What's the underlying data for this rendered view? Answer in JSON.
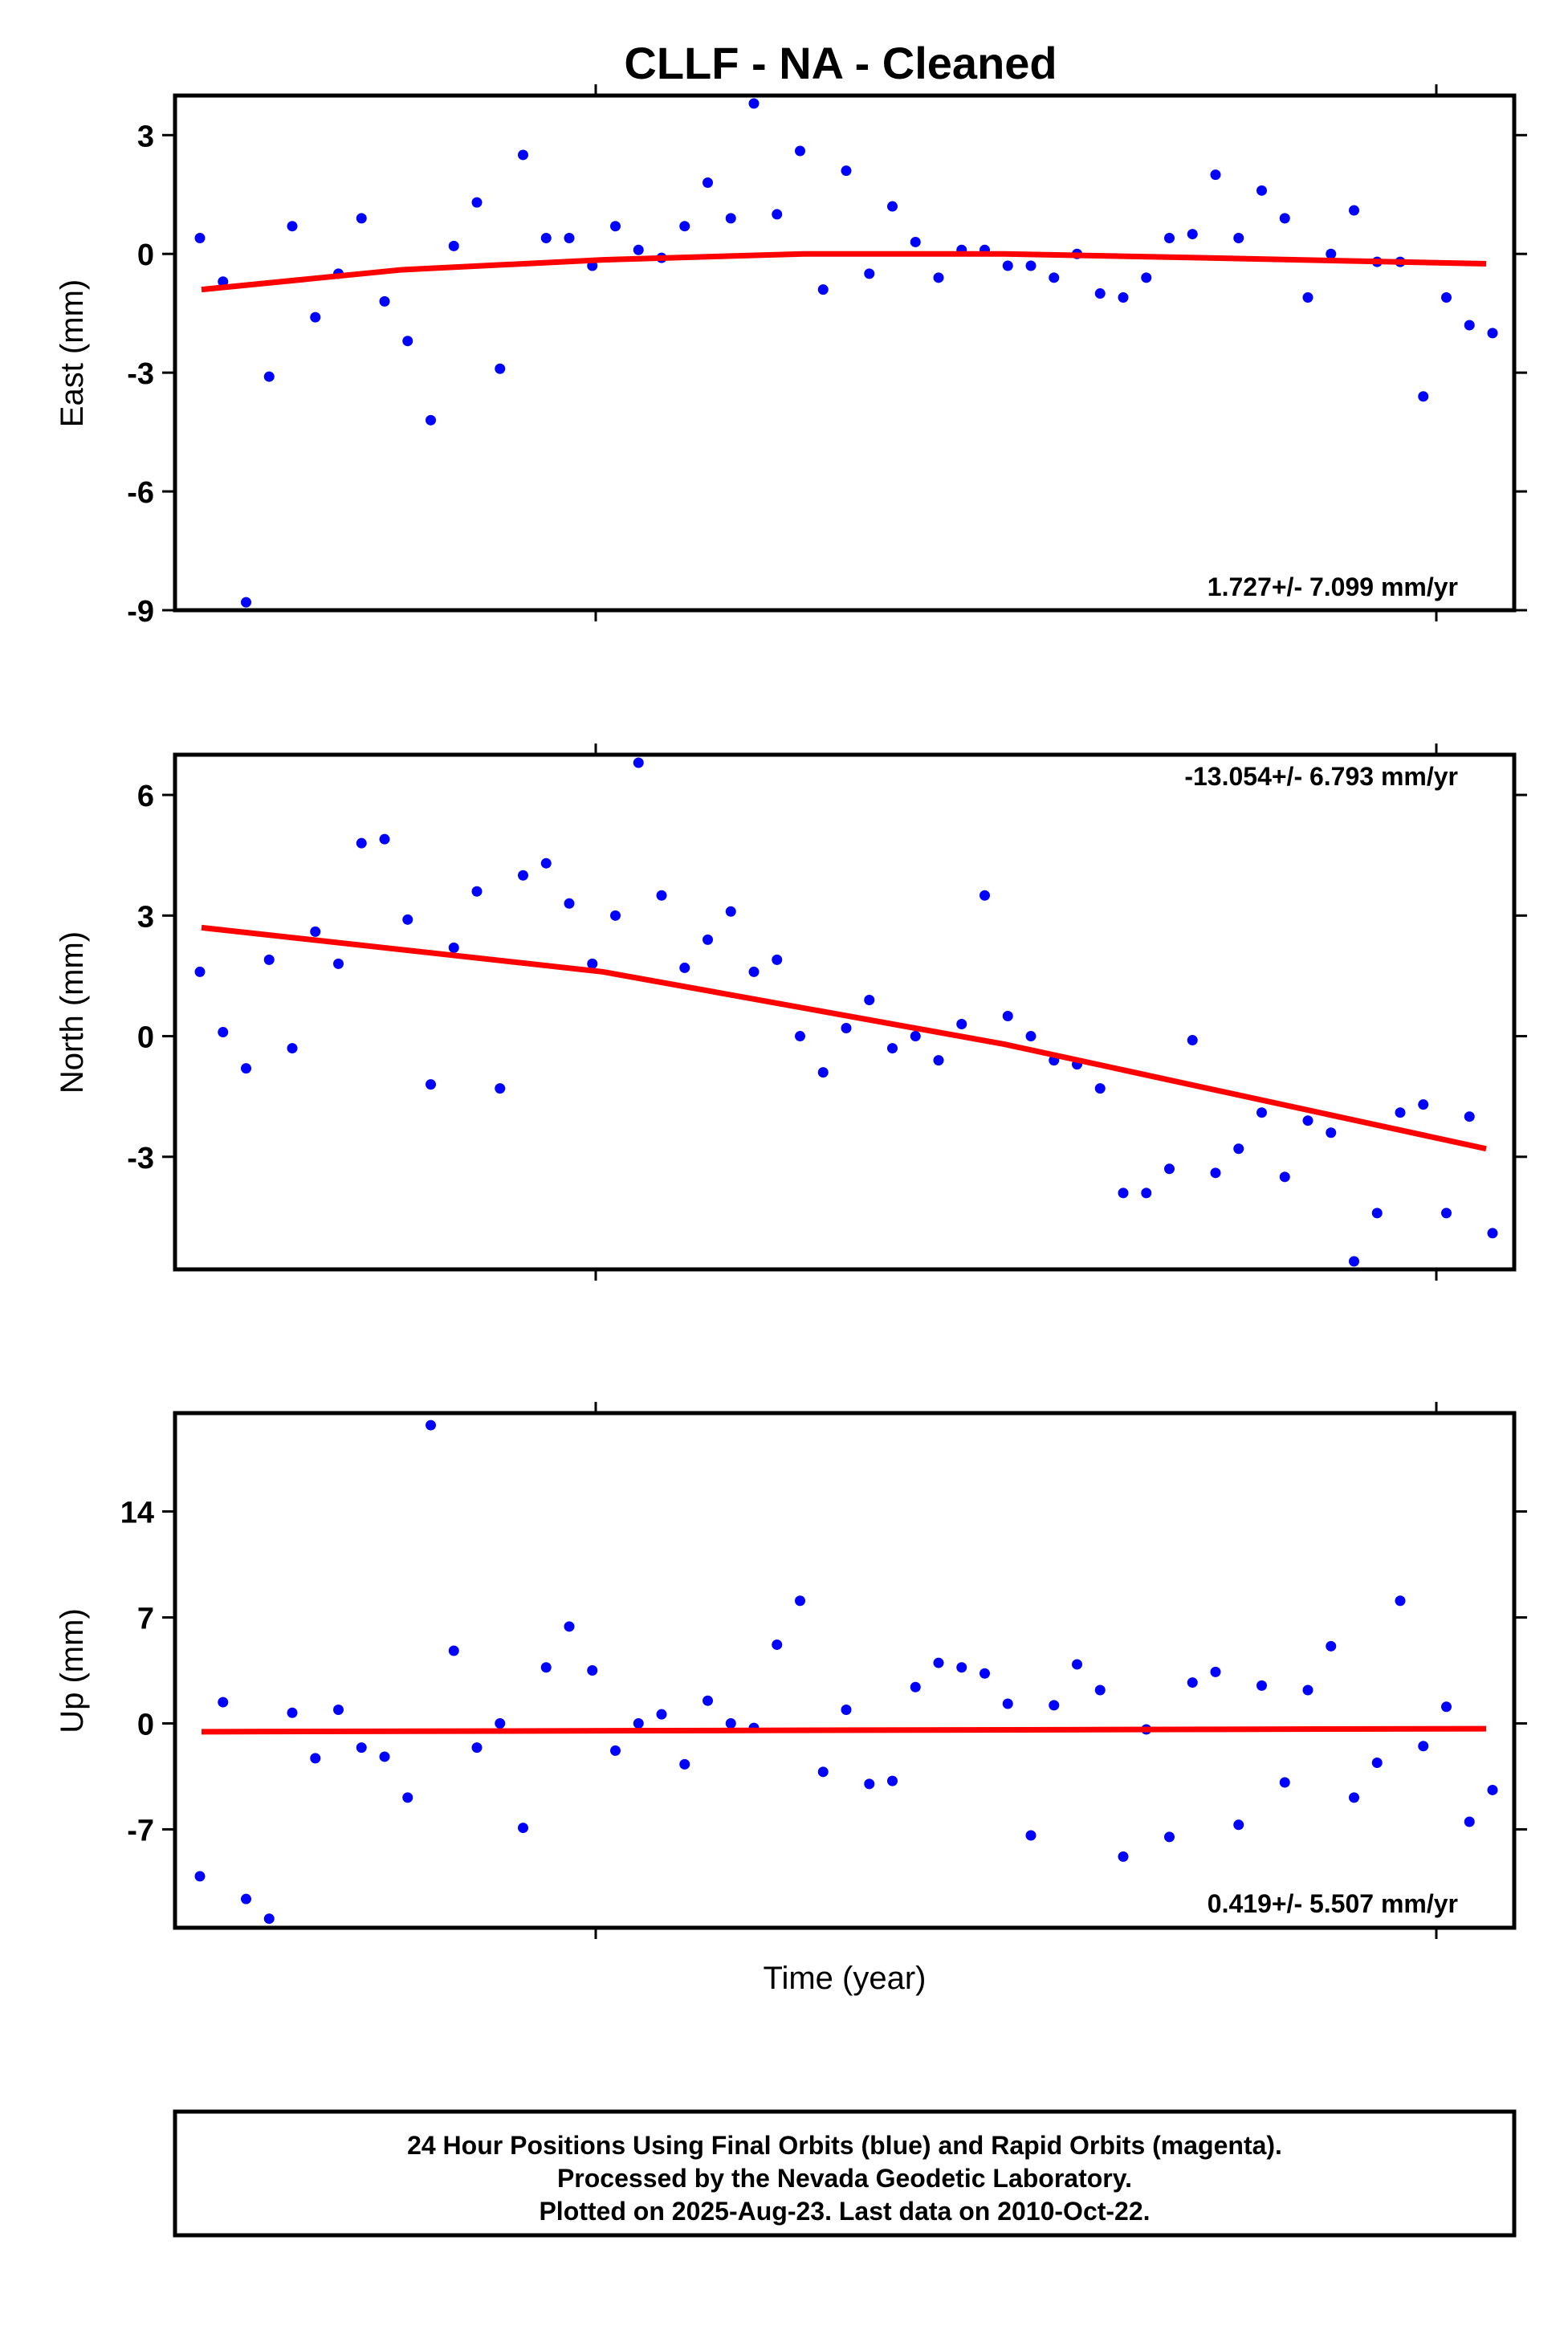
{
  "title": "CLLF  - NA - Cleaned",
  "xlabel": "Time (year)",
  "footer": {
    "line1": "24 Hour Positions Using Final Orbits (blue) and Rapid Orbits (magenta).",
    "line2": "Processed by the Nevada Geodetic Laboratory.",
    "line3": "Plotted on 2025-Aug-23. Last data on 2010-Oct-22."
  },
  "colors": {
    "points": "#0000ff",
    "trend": "#ff0000",
    "frame": "#000000"
  },
  "chart_data": [
    {
      "type": "scatter",
      "ylabel": "East (mm)",
      "ylim": [
        -9,
        4
      ],
      "yticks": [
        3,
        0,
        -3,
        -6,
        -9
      ],
      "rate": "1.727+/- 7.099 mm/yr",
      "rate_position": "bottom-right",
      "series": [
        {
          "values": [
            0.4,
            -0.7,
            -8.8,
            -3.1,
            0.7,
            -1.6,
            -0.5,
            0.9,
            -1.2,
            -2.2,
            -4.2,
            0.2,
            1.3,
            -2.9,
            2.5,
            0.4,
            0.4,
            -0.3,
            0.7,
            0.1,
            -0.1,
            0.7,
            1.8,
            0.9,
            3.8,
            1.0,
            2.6,
            -0.9,
            2.1,
            -0.5,
            1.2,
            0.3,
            -0.6,
            0.1,
            0.1,
            -0.3,
            -0.3,
            -0.6,
            0.0,
            -1.0,
            -1.1,
            -0.6,
            0.4,
            0.5,
            2.0,
            0.4,
            1.6,
            0.9,
            -1.1,
            0.0,
            1.1,
            -0.2,
            -0.2,
            -3.6,
            -1.1,
            -1.8,
            -2.0
          ]
        }
      ],
      "trend": [
        [
          0,
          -0.9
        ],
        [
          0.5,
          -0.4
        ],
        [
          1.0,
          -0.15
        ],
        [
          1.5,
          0.0
        ],
        [
          2.0,
          0.0
        ],
        [
          2.5,
          -0.1
        ],
        [
          3.2,
          -0.25
        ]
      ]
    },
    {
      "type": "scatter",
      "ylabel": "North (mm)",
      "ylim": [
        -5.8,
        7
      ],
      "yticks": [
        6,
        3,
        0,
        -3
      ],
      "rate": "-13.054+/- 6.793 mm/yr",
      "rate_position": "top-right",
      "series": [
        {
          "values": [
            1.6,
            0.1,
            -0.8,
            1.9,
            -0.3,
            2.6,
            1.8,
            4.8,
            4.9,
            2.9,
            -1.2,
            2.2,
            3.6,
            -1.3,
            4.0,
            4.3,
            3.3,
            1.8,
            3.0,
            6.8,
            3.5,
            1.7,
            2.4,
            3.1,
            1.6,
            1.9,
            0.0,
            -0.9,
            0.2,
            0.9,
            -0.3,
            0.0,
            -0.6,
            0.3,
            3.5,
            0.5,
            0.0,
            -0.6,
            -0.7,
            -1.3,
            -3.9,
            -3.9,
            -3.3,
            -0.1,
            -3.4,
            -2.8,
            -1.9,
            -3.5,
            -2.1,
            -2.4,
            -5.6,
            -4.4,
            -1.9,
            -1.7,
            -4.4,
            -2.0,
            -4.9
          ]
        }
      ],
      "trend": [
        [
          0,
          2.7
        ],
        [
          1.0,
          1.6
        ],
        [
          2.0,
          -0.2
        ],
        [
          3.2,
          -2.8
        ]
      ]
    },
    {
      "type": "scatter",
      "ylabel": "Up (mm)",
      "ylim": [
        -13.5,
        20.5
      ],
      "yticks": [
        14,
        7,
        0,
        -7
      ],
      "rate": "0.419+/- 5.507 mm/yr",
      "rate_position": "bottom-right",
      "series": [
        {
          "values": [
            -10.1,
            1.4,
            -11.6,
            -12.9,
            0.7,
            -2.3,
            0.9,
            -1.6,
            -2.2,
            -4.9,
            19.7,
            4.8,
            -1.6,
            0.0,
            -6.9,
            3.7,
            6.4,
            3.5,
            -1.8,
            0.0,
            0.6,
            -2.7,
            1.5,
            0.0,
            -0.3,
            5.2,
            8.1,
            -3.2,
            0.9,
            -4.0,
            -3.8,
            2.4,
            4.0,
            3.7,
            3.3,
            1.3,
            -7.4,
            1.2,
            3.9,
            2.2,
            -8.8,
            -0.4,
            -7.5,
            2.7,
            3.4,
            -6.7,
            2.5,
            -3.9,
            2.2,
            5.1,
            -4.9,
            -2.6,
            8.1,
            -1.5,
            1.1,
            -6.5,
            -4.4
          ]
        }
      ],
      "trend": [
        [
          0,
          -0.55
        ],
        [
          3.2,
          -0.35
        ]
      ]
    }
  ]
}
